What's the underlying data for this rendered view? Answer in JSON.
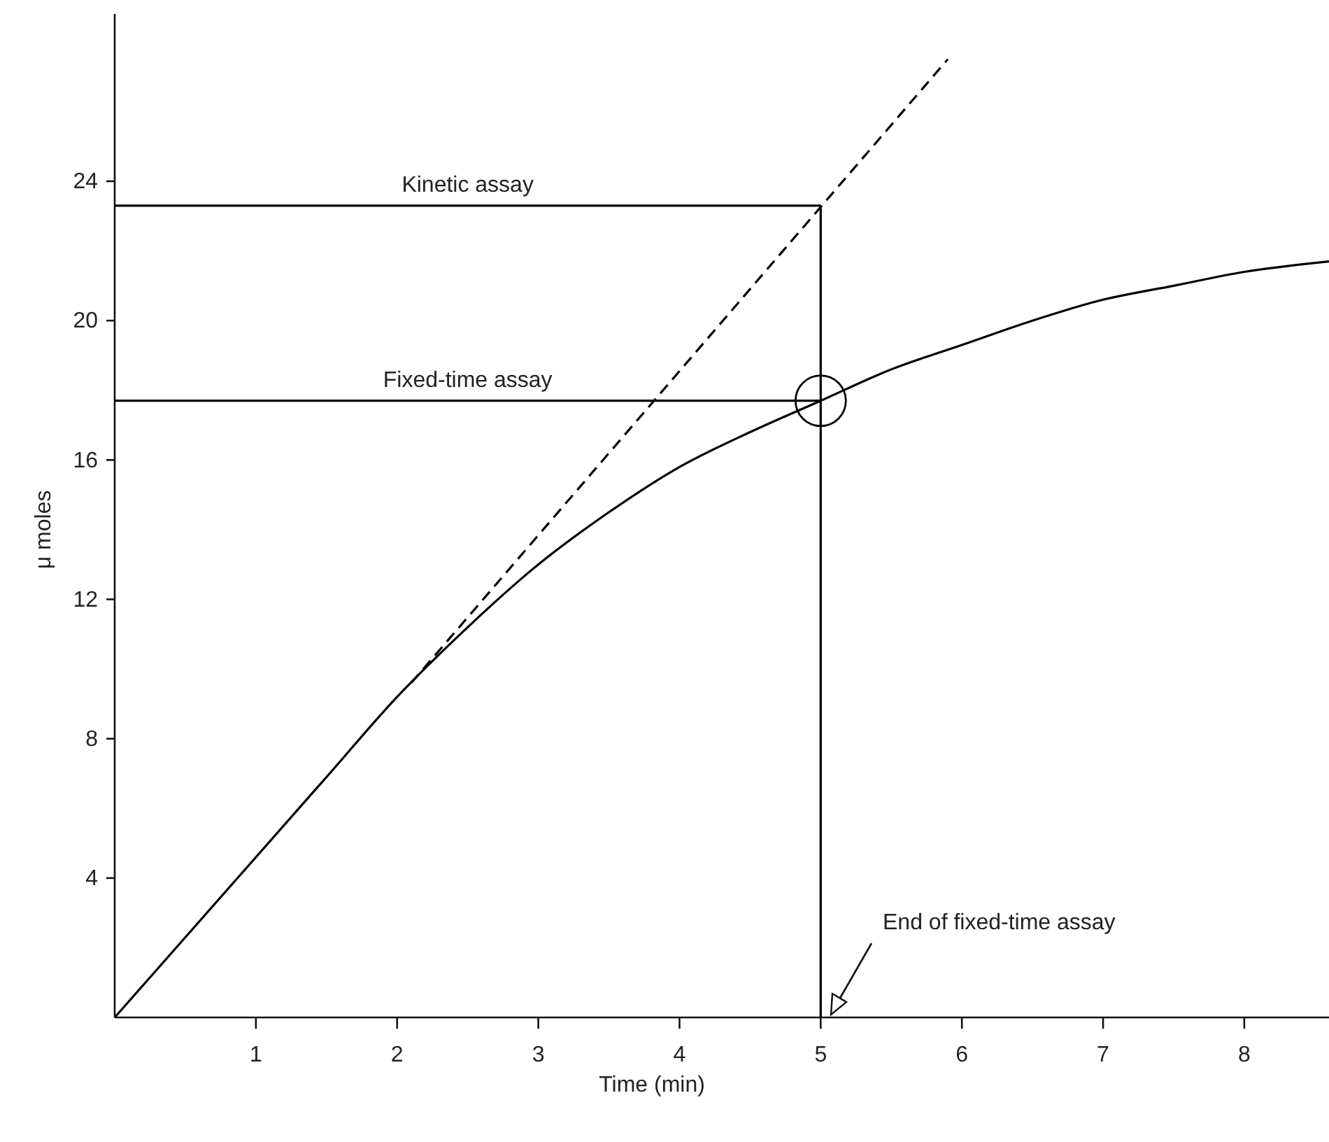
{
  "chart_data": {
    "type": "line",
    "xlabel": "Time (min)",
    "ylabel": "μ moles",
    "xlim": [
      0,
      8.6
    ],
    "ylim": [
      0,
      28.8
    ],
    "xticks": [
      1,
      2,
      3,
      4,
      5,
      6,
      7,
      8
    ],
    "yticks": [
      4,
      8,
      12,
      16,
      20,
      24
    ],
    "grid": false,
    "series": [
      {
        "color": "#000000",
        "line_style": "solid",
        "x": [
          0,
          0.5,
          1,
          1.5,
          2,
          2.5,
          3,
          3.5,
          4,
          4.5,
          5,
          5.5,
          6,
          6.5,
          7,
          7.5,
          8,
          8.6
        ],
        "values": [
          0,
          2.3,
          4.6,
          6.9,
          9.2,
          11.2,
          13.0,
          14.5,
          15.8,
          16.8,
          17.7,
          18.6,
          19.3,
          20.0,
          20.6,
          21.0,
          21.4,
          21.7
        ]
      },
      {
        "color": "#000000",
        "line_style": "dashed",
        "x": [
          2.1,
          5.9
        ],
        "values": [
          9.6,
          27.5
        ]
      },
      {
        "color": "#000000",
        "line_style": "solid",
        "x": [
          0,
          5
        ],
        "values": [
          23.3,
          23.3
        ]
      },
      {
        "color": "#000000",
        "line_style": "solid",
        "x": [
          0,
          5
        ],
        "values": [
          17.7,
          17.7
        ]
      },
      {
        "color": "#000000",
        "line_style": "solid",
        "x": [
          5,
          5
        ],
        "values": [
          0,
          23.3
        ]
      },
      {
        "type": "scatter",
        "marker": "circle",
        "color": "#000000",
        "x": [
          5
        ],
        "values": [
          17.7
        ]
      }
    ],
    "annotations": [
      {
        "text": "Kinetic assay",
        "x": 2.5,
        "y": 23.3
      },
      {
        "text": "Fixed-time assay",
        "x": 2.5,
        "y": 17.7
      },
      "End of fixed-time assay"
    ]
  }
}
